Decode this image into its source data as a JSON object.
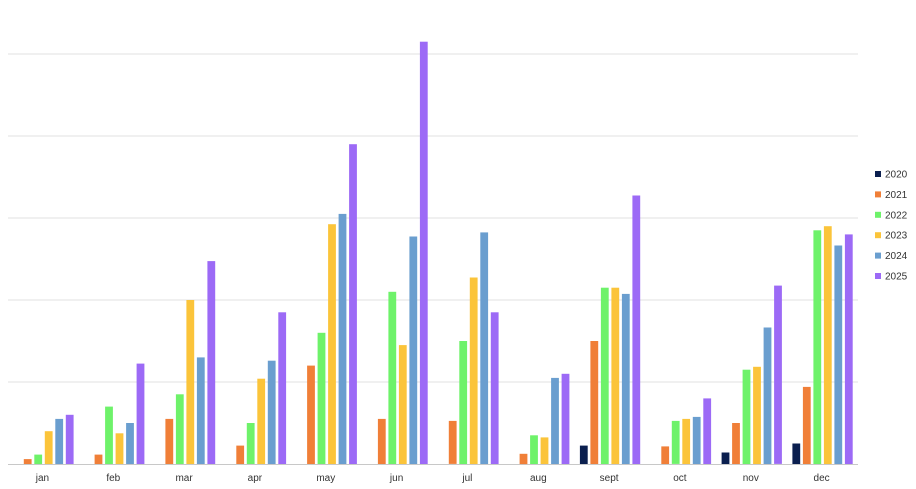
{
  "chart_data": {
    "type": "bar",
    "title": "",
    "xlabel": "",
    "ylabel": "",
    "categories": [
      "jan",
      "feb",
      "mar",
      "apr",
      "may",
      "jun",
      "jul",
      "aug",
      "sept",
      "oct",
      "nov",
      "dec"
    ],
    "ylim": [
      0,
      100
    ],
    "grid": true,
    "legend_position": "right",
    "series": [
      {
        "name": "2020",
        "color": "#0b1f4f",
        "values": [
          0,
          0,
          0,
          0,
          0,
          0,
          0,
          0,
          4.5,
          0,
          2.8,
          5
        ]
      },
      {
        "name": "2021",
        "color": "#f07f38",
        "values": [
          1.2,
          2.3,
          11,
          4.5,
          24,
          11,
          10.5,
          2.5,
          30,
          4.3,
          10,
          18.8
        ]
      },
      {
        "name": "2022",
        "color": "#6ef26a",
        "values": [
          2.3,
          14,
          17,
          10,
          32,
          42,
          30,
          7,
          43,
          10.5,
          23,
          57
        ]
      },
      {
        "name": "2023",
        "color": "#fbc43a",
        "values": [
          8,
          7.5,
          40,
          20.8,
          58.5,
          29,
          45.5,
          6.5,
          43,
          11,
          23.7,
          58
        ]
      },
      {
        "name": "2024",
        "color": "#6a9ecf",
        "values": [
          11,
          10,
          26,
          25.2,
          61,
          55.5,
          56.5,
          21,
          41.5,
          11.5,
          33.3,
          53.3
        ]
      },
      {
        "name": "2025",
        "color": "#9c6af6",
        "values": [
          12,
          24.5,
          49.5,
          37,
          78,
          103,
          37,
          22,
          65.5,
          16,
          43.5,
          56
        ]
      }
    ]
  }
}
